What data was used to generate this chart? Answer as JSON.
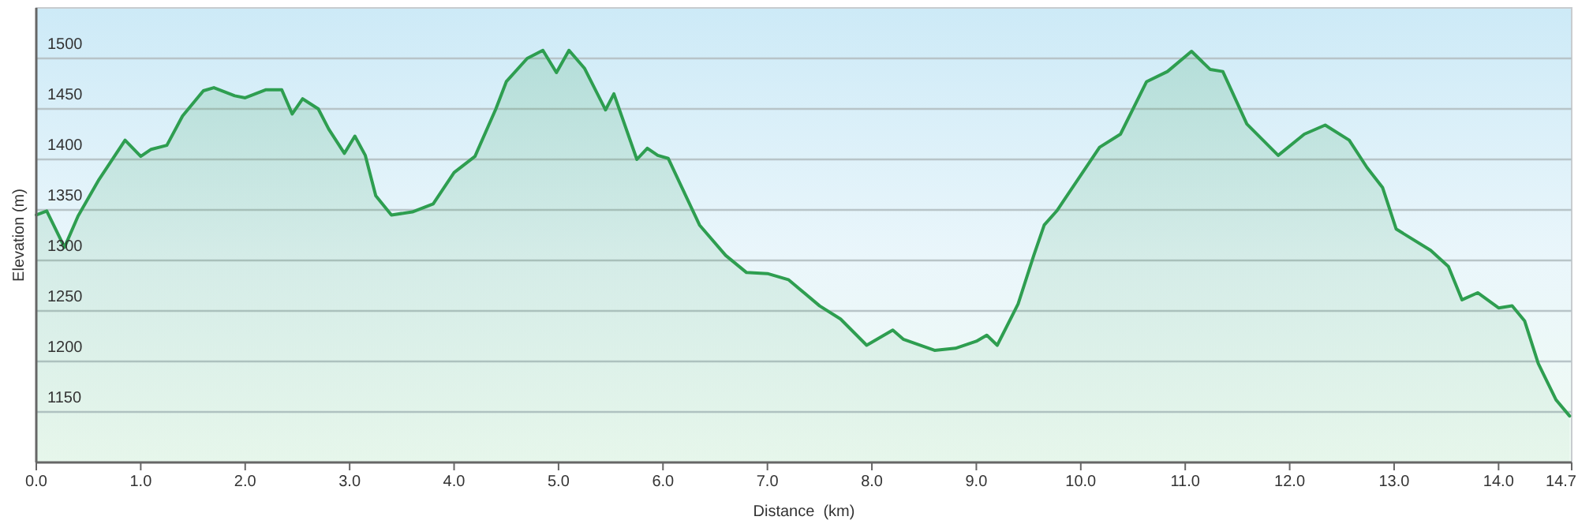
{
  "chart_data": {
    "type": "area",
    "xlabel": "Distance  (km)",
    "ylabel": "Elevation (m)",
    "xlim": [
      0,
      14.7
    ],
    "ylim": [
      1100,
      1550
    ],
    "xticks": [
      {
        "value": 0,
        "label": "0.0"
      },
      {
        "value": 1,
        "label": "1.0"
      },
      {
        "value": 2,
        "label": "2.0"
      },
      {
        "value": 3,
        "label": "3.0"
      },
      {
        "value": 4,
        "label": "4.0"
      },
      {
        "value": 5,
        "label": "5.0"
      },
      {
        "value": 6,
        "label": "6.0"
      },
      {
        "value": 7,
        "label": "7.0"
      },
      {
        "value": 8,
        "label": "8.0"
      },
      {
        "value": 9,
        "label": "9.0"
      },
      {
        "value": 10,
        "label": "10.0"
      },
      {
        "value": 11,
        "label": "11.0"
      },
      {
        "value": 12,
        "label": "12.0"
      },
      {
        "value": 13,
        "label": "13.0"
      },
      {
        "value": 14,
        "label": "14.0"
      },
      14.7
    ],
    "yticks": [
      1150,
      1200,
      1250,
      1300,
      1350,
      1400,
      1450,
      1500
    ],
    "grid": "y",
    "series": [
      {
        "color": "#2e9e50",
        "x": [
          0,
          0.1,
          0.27,
          0.4,
          0.6,
          0.85,
          1.0,
          1.1,
          1.25,
          1.4,
          1.6,
          1.7,
          1.9,
          2.0,
          2.2,
          2.35,
          2.45,
          2.55,
          2.7,
          2.8,
          2.95,
          3.05,
          3.15,
          3.25,
          3.4,
          3.6,
          3.8,
          4.0,
          4.2,
          4.4,
          4.5,
          4.7,
          4.85,
          4.98,
          5.1,
          5.25,
          5.45,
          5.53,
          5.75,
          5.85,
          5.95,
          6.05,
          6.35,
          6.6,
          6.8,
          7.0,
          7.2,
          7.5,
          7.7,
          7.95,
          8.2,
          8.3,
          8.6,
          8.8,
          9.0,
          9.1,
          9.2,
          9.4,
          9.55,
          9.65,
          9.77,
          10.18,
          10.38,
          10.63,
          10.83,
          11.06,
          11.24,
          11.36,
          11.59,
          11.89,
          12.14,
          12.34,
          12.57,
          12.74,
          12.89,
          13.02,
          13.35,
          13.52,
          13.65,
          13.8,
          14.0,
          14.13,
          14.25,
          14.38,
          14.55,
          14.68
        ],
        "values": [
          1345,
          1349,
          1313,
          1344,
          1380,
          1419,
          1403,
          1410,
          1414,
          1443,
          1468,
          1471,
          1463,
          1461,
          1469,
          1469,
          1445,
          1460,
          1450,
          1430,
          1406,
          1423,
          1404,
          1364,
          1345,
          1348,
          1356,
          1387,
          1403,
          1450,
          1477,
          1500,
          1508,
          1486,
          1508,
          1490,
          1449,
          1465,
          1400,
          1411,
          1404,
          1401,
          1335,
          1305,
          1288,
          1287,
          1281,
          1255,
          1242,
          1216,
          1231,
          1222,
          1211,
          1213,
          1220,
          1226,
          1216,
          1257,
          1305,
          1335,
          1349,
          1412,
          1425,
          1477,
          1487,
          1507,
          1489,
          1487,
          1435,
          1404,
          1425,
          1434,
          1419,
          1392,
          1372,
          1331,
          1310,
          1294,
          1261,
          1268,
          1253,
          1255,
          1240,
          1198,
          1162,
          1146
        ]
      }
    ]
  }
}
